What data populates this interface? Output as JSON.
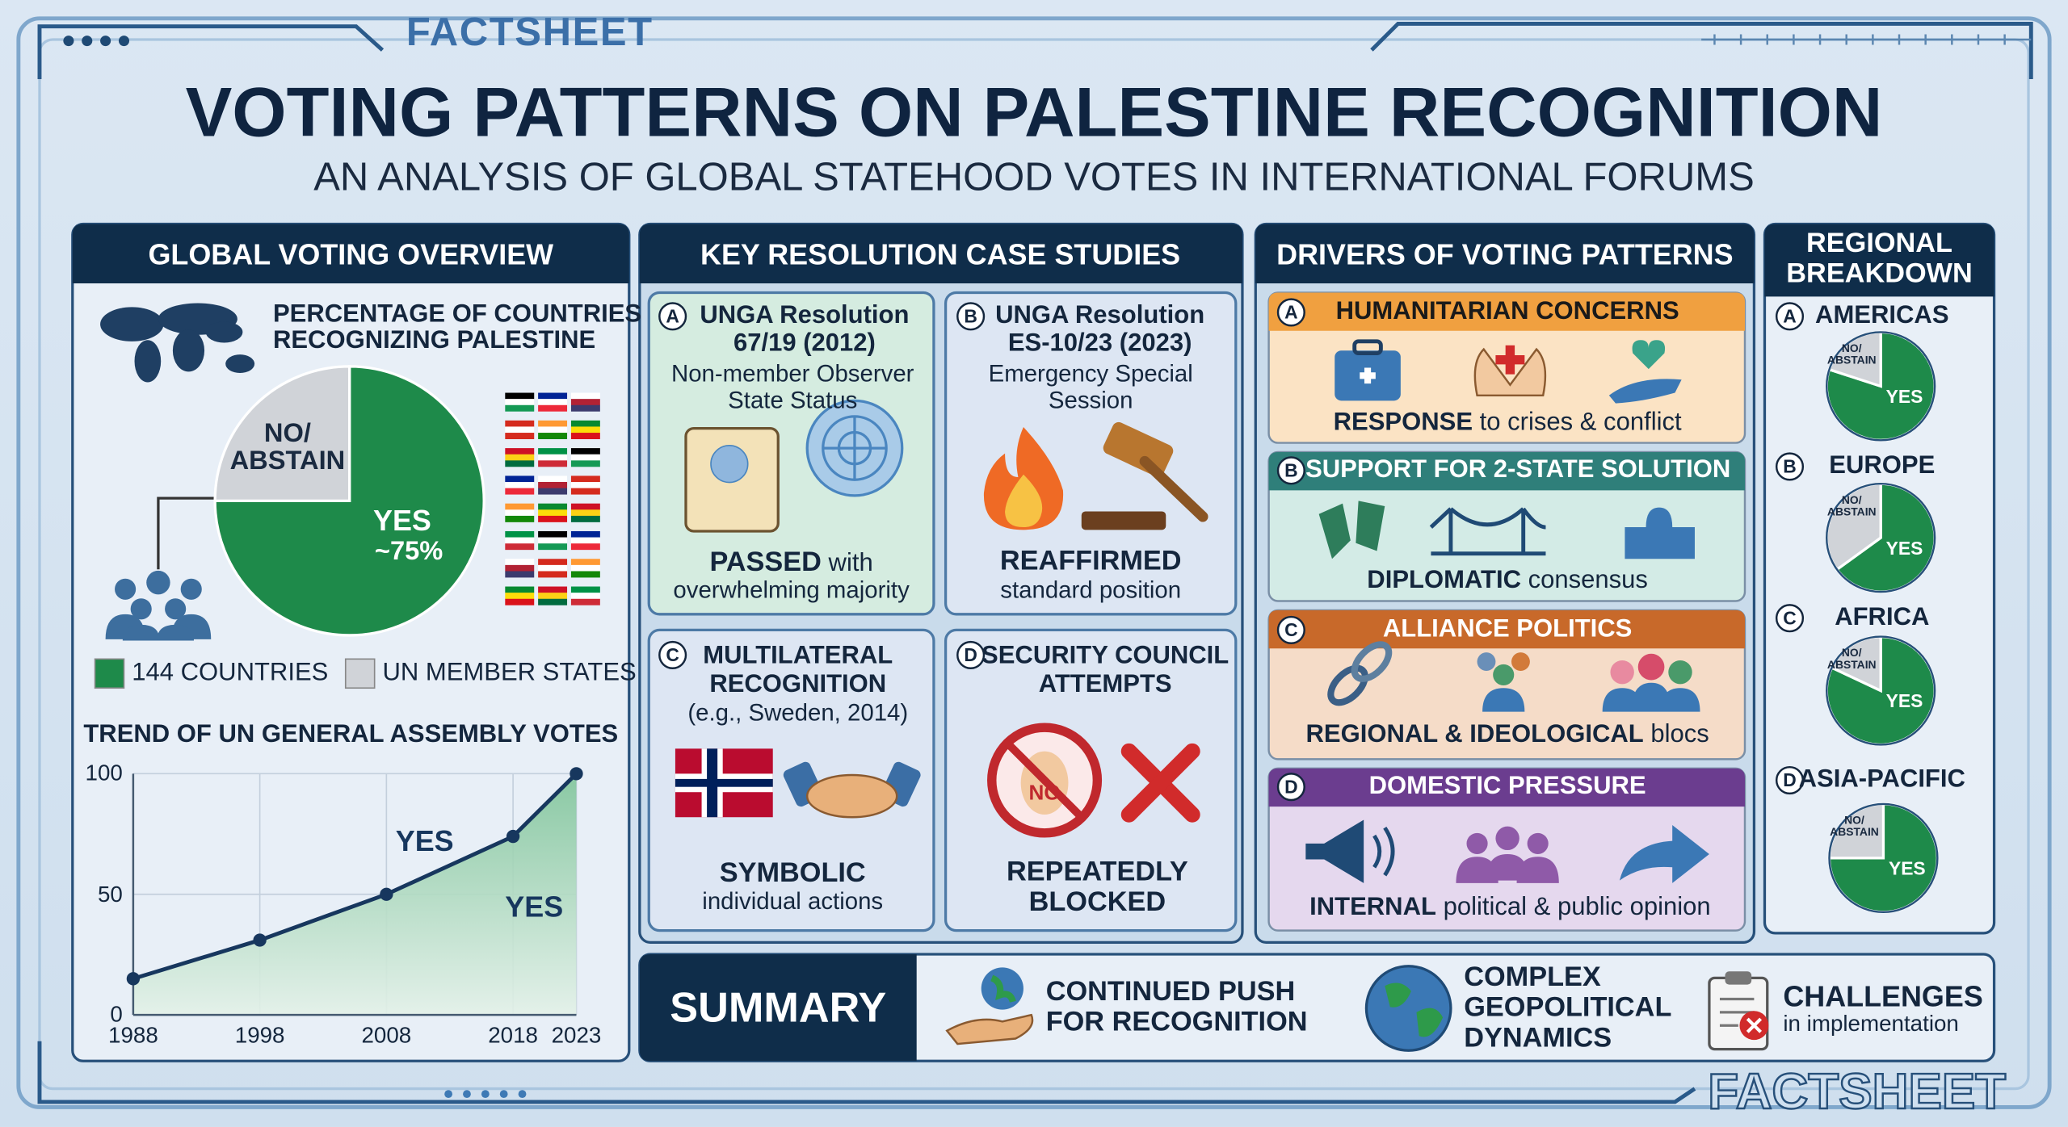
{
  "header": {
    "brand": "FACTSHEET",
    "title": "VOTING PATTERNS ON PALESTINE RECOGNITION",
    "subtitle": "AN ANALYSIS OF GLOBAL STATEHOOD VOTES IN INTERNATIONAL FORUMS"
  },
  "overview": {
    "heading": "GLOBAL VOTING OVERVIEW"
  },
  "case_studies": {
    "heading": "KEY RESOLUTION CASE STUDIES",
    "items": [
      {
        "marker": "A",
        "title": [
          "UNGA Resolution",
          "67/19 (2012)"
        ],
        "subtitle": [
          "Non-member Observer",
          "State Status"
        ],
        "outcome_bold": "PASSED",
        "outcome_text": "with",
        "detail": "overwhelming majority"
      },
      {
        "marker": "B",
        "title": [
          "UNGA Resolution",
          "ES-10/23 (2023)"
        ],
        "subtitle": [
          "Emergency Special",
          "Session"
        ],
        "outcome_bold": "REAFFIRMED",
        "detail": "standard position"
      },
      {
        "marker": "C",
        "title": [
          "MULTILATERAL",
          "RECOGNITION"
        ],
        "subtitle": [
          "(e.g., Sweden, 2014)"
        ],
        "outcome_bold": "SYMBOLIC",
        "detail": "individual actions"
      },
      {
        "marker": "D",
        "title": [
          "SECURITY COUNCIL",
          "ATTEMPTS"
        ],
        "icon_text": "NO",
        "outcome_bold": "REPEATEDLY",
        "detail": "BLOCKED"
      }
    ]
  },
  "drivers": {
    "heading": "DRIVERS OF VOTING PATTERNS",
    "items": [
      {
        "marker": "A",
        "title": "HUMANITARIAN CONCERNS",
        "bold": "RESPONSE",
        "text": "to crises & conflict"
      },
      {
        "marker": "B",
        "title": "SUPPORT FOR 2-STATE SOLUTION",
        "bold": "DIPLOMATIC",
        "text": "consensus"
      },
      {
        "marker": "C",
        "title": "ALLIANCE POLITICS",
        "bold": "REGIONAL & IDEOLOGICAL",
        "text": "blocs"
      },
      {
        "marker": "D",
        "title": "DOMESTIC PRESSURE",
        "bold": "INTERNAL",
        "text": "political & public opinion"
      }
    ]
  },
  "regional": {
    "heading": [
      "REGIONAL",
      "BREAKDOWN"
    ]
  },
  "summary": {
    "heading": "SUMMARY",
    "items": [
      {
        "lines": [
          "CONTINUED PUSH",
          "FOR RECOGNITION"
        ]
      },
      {
        "lines": [
          "COMPLEX",
          "GEOPOLITICAL",
          "DYNAMICS"
        ]
      },
      {
        "lines": [
          "CHALLENGES"
        ],
        "text": "in implementation"
      }
    ]
  },
  "footer": {
    "brand": "FACTSHEET"
  },
  "chart_data": [
    {
      "type": "pie",
      "title": [
        "PERCENTAGE OF COUNTRIES",
        "RECOGNIZING PALESTINE"
      ],
      "categories": [
        "YES",
        "NO/ ABSTAIN"
      ],
      "values": [
        75,
        25
      ],
      "value_labels": [
        "~75%",
        null
      ],
      "colors": [
        "#1e8a4a",
        "#d0d3d8"
      ],
      "legend": [
        {
          "label": "144 COUNTRIES",
          "color": "#1e8a4a"
        },
        {
          "label": "UN MEMBER STATES",
          "color": "#d0d3d8"
        }
      ]
    },
    {
      "type": "line",
      "title": "TREND OF UN GENERAL ASSEMBLY VOTES",
      "x": [
        1988,
        1998,
        2008,
        2018,
        2023
      ],
      "values": [
        15,
        31,
        50,
        74,
        100
      ],
      "color": "#17375e",
      "area_color": "#7fc49a",
      "xlim": [
        1988,
        2023
      ],
      "xticks": [
        1988,
        1998,
        2008,
        2018,
        2023
      ],
      "ylim": [
        0,
        100
      ],
      "yticks": [
        0,
        50,
        100
      ],
      "grid": true,
      "annotations": [
        "YES",
        "YES"
      ]
    },
    {
      "type": "pie",
      "marker": "A",
      "title": "AMERICAS",
      "categories": [
        "YES",
        "NO/ ABSTAIN"
      ],
      "values": [
        80,
        20
      ],
      "colors": [
        "#1e8a4a",
        "#d0d3d8"
      ]
    },
    {
      "type": "pie",
      "marker": "B",
      "title": "EUROPE",
      "categories": [
        "YES",
        "NO/ ABSTAIN"
      ],
      "values": [
        65,
        35
      ],
      "colors": [
        "#1e8a4a",
        "#d0d3d8"
      ]
    },
    {
      "type": "pie",
      "marker": "C",
      "title": "AFRICA",
      "categories": [
        "YES",
        "NO/ ABSTAIN"
      ],
      "values": [
        82,
        18
      ],
      "colors": [
        "#1e8a4a",
        "#d0d3d8"
      ]
    },
    {
      "type": "pie",
      "marker": "D",
      "title": "ASIA-PACIFIC",
      "categories": [
        "YES",
        "NO/ ABSTAIN"
      ],
      "values": [
        75,
        25
      ],
      "colors": [
        "#1e8a4a",
        "#d0d3d8"
      ]
    }
  ]
}
